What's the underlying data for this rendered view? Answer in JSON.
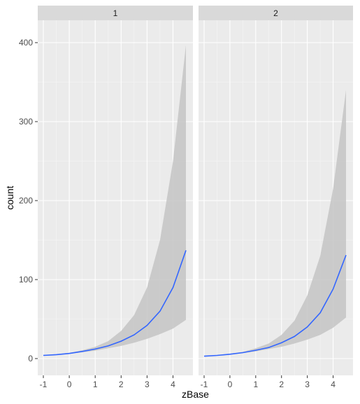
{
  "colors": {
    "panel_bg": "#ebebeb",
    "strip_bg": "#d9d9d9",
    "grid_major": "#ffffff",
    "grid_minor": "#f5f5f5",
    "ribbon": "#c4c4c4",
    "line": "#3366ff",
    "tick": "#333333"
  },
  "chart_data": {
    "type": "line",
    "facet_labels": [
      "1",
      "2"
    ],
    "xlabel": "zBase",
    "ylabel": "count",
    "xlim": [
      -1,
      4.5
    ],
    "ylim": [
      0,
      425
    ],
    "x_ticks": [
      -1,
      0,
      1,
      2,
      3,
      4
    ],
    "y_ticks": [
      0,
      100,
      200,
      300,
      400
    ],
    "grid": true,
    "panels": [
      {
        "facet": "1",
        "x": [
          -1,
          -0.5,
          0,
          0.5,
          1,
          1.5,
          2,
          2.5,
          3,
          3.5,
          4,
          4.5
        ],
        "fit": [
          4,
          5,
          6.5,
          9,
          12,
          16,
          22,
          30,
          42,
          60,
          90,
          137
        ],
        "lower": [
          3.5,
          4.5,
          6,
          8,
          10,
          13,
          16,
          20,
          25,
          31,
          38,
          49
        ],
        "upper": [
          4.5,
          5.6,
          7.3,
          10.5,
          15,
          22,
          35,
          55,
          90,
          150,
          250,
          397
        ]
      },
      {
        "facet": "2",
        "x": [
          -1,
          -0.5,
          0,
          0.5,
          1,
          1.5,
          2,
          2.5,
          3,
          3.5,
          4,
          4.5
        ],
        "fit": [
          3,
          4,
          5.5,
          7.5,
          10.5,
          14,
          20,
          28,
          40,
          58,
          88,
          131
        ],
        "lower": [
          2.6,
          3.6,
          5,
          6.8,
          9,
          12,
          15,
          19,
          24,
          30,
          39,
          52
        ],
        "upper": [
          3.4,
          4.5,
          6.2,
          8.5,
          13,
          19,
          30,
          48,
          80,
          130,
          215,
          340
        ]
      }
    ]
  }
}
